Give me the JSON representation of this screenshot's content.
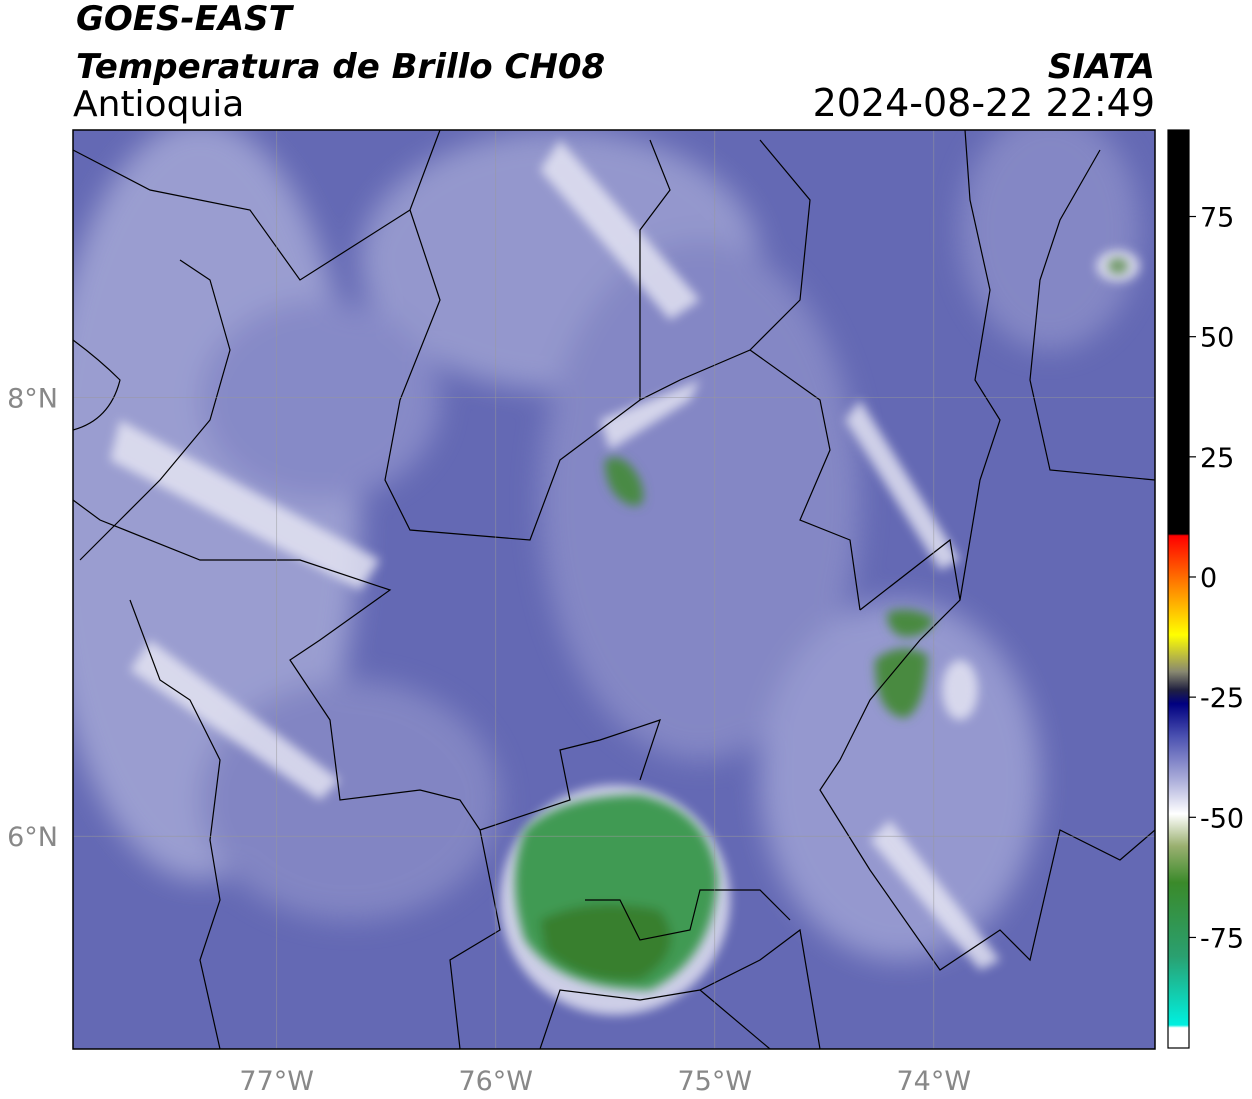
{
  "header": {
    "product": "GOES-EAST",
    "title": "Temperatura de Brillo CH08",
    "source": "SIATA",
    "region": "Antioquia",
    "datetime": "2024-08-22 22:49"
  },
  "map": {
    "xlim": [
      -77.93,
      -72.99
    ],
    "ylim": [
      5.03,
      9.22
    ],
    "xticks": [
      {
        "value": -77,
        "label": "77°W"
      },
      {
        "value": -76,
        "label": "76°W"
      },
      {
        "value": -75,
        "label": "75°W"
      },
      {
        "value": -74,
        "label": "74°W"
      }
    ],
    "yticks": [
      {
        "value": 8,
        "label": "8°N"
      },
      {
        "value": 6,
        "label": "6°N"
      }
    ],
    "grid": true
  },
  "colorbar": {
    "lim": [
      -98,
      93
    ],
    "ticks": [
      75,
      50,
      25,
      0,
      -25,
      -50,
      -75
    ]
  }
}
